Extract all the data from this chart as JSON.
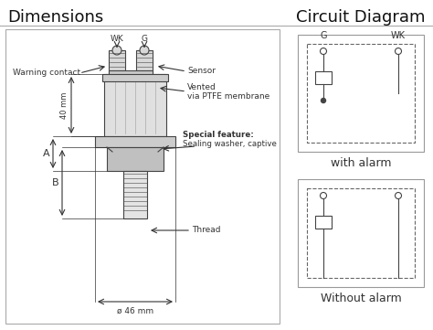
{
  "title_left": "Dimensions",
  "title_right": "Circuit Diagram",
  "title_fontsize": 13,
  "bg_color": "#ffffff",
  "label_color": "#333333",
  "dc": "#444444",
  "with_alarm_label": "with alarm",
  "without_alarm_label": "Without alarm",
  "dim_label_40mm": "40 mm",
  "dim_label_46mm": "ø 46 mm",
  "dim_label_A": "A",
  "dim_label_B": "B",
  "label_wk": "WK",
  "label_g": "G",
  "label_warning": "Warning contact",
  "label_sensor": "Sensor",
  "label_vented1": "Vented",
  "label_vented2": "via PTFE membrane",
  "label_special1": "Special feature:",
  "label_special2": "Sealing washer, captive",
  "label_thread": "Thread"
}
